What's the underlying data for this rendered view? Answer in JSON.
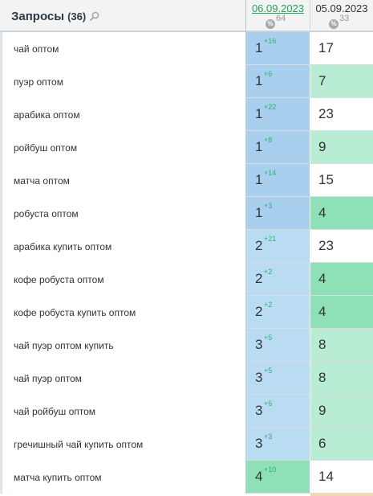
{
  "header": {
    "title": "Запросы",
    "count": "(36)",
    "search_icon": "search-icon",
    "dates": [
      {
        "label": "06.09.2023",
        "badge": "%",
        "percent": "64"
      },
      {
        "label": "05.09.2023",
        "badge": "%",
        "percent": "33"
      }
    ]
  },
  "colors": {
    "d1_top": "#a8d0ee",
    "d1_mid": "#b9dcf3",
    "d1_green": "#8ee0b6",
    "d2_green_strong": "#8ee0b6",
    "d2_green_light": "#b8ecd3",
    "d2_white": "#ffffff",
    "delta_green": "#2bb36a"
  },
  "rows": [
    {
      "query": "чай оптом",
      "d1": {
        "pos": "1",
        "delta": "+16",
        "color": "d1_top"
      },
      "d2": {
        "pos": "17",
        "color": "d2_white"
      }
    },
    {
      "query": "пуэр оптом",
      "d1": {
        "pos": "1",
        "delta": "+6",
        "color": "d1_top"
      },
      "d2": {
        "pos": "7",
        "color": "d2_green_light"
      }
    },
    {
      "query": "арабика оптом",
      "d1": {
        "pos": "1",
        "delta": "+22",
        "color": "d1_top"
      },
      "d2": {
        "pos": "23",
        "color": "d2_white"
      }
    },
    {
      "query": "ройбуш оптом",
      "d1": {
        "pos": "1",
        "delta": "+8",
        "color": "d1_top"
      },
      "d2": {
        "pos": "9",
        "color": "d2_green_light"
      }
    },
    {
      "query": "матча оптом",
      "d1": {
        "pos": "1",
        "delta": "+14",
        "color": "d1_top"
      },
      "d2": {
        "pos": "15",
        "color": "d2_white"
      }
    },
    {
      "query": "робуста оптом",
      "d1": {
        "pos": "1",
        "delta": "+3",
        "color": "d1_top"
      },
      "d2": {
        "pos": "4",
        "color": "d2_green_strong"
      }
    },
    {
      "query": "арабика купить оптом",
      "d1": {
        "pos": "2",
        "delta": "+21",
        "color": "d1_mid"
      },
      "d2": {
        "pos": "23",
        "color": "d2_white"
      }
    },
    {
      "query": "кофе робуста оптом",
      "d1": {
        "pos": "2",
        "delta": "+2",
        "color": "d1_mid"
      },
      "d2": {
        "pos": "4",
        "color": "d2_green_strong"
      }
    },
    {
      "query": "кофе робуста купить оптом",
      "d1": {
        "pos": "2",
        "delta": "+2",
        "color": "d1_mid"
      },
      "d2": {
        "pos": "4",
        "color": "d2_green_strong"
      }
    },
    {
      "query": "чай пуэр оптом купить",
      "d1": {
        "pos": "3",
        "delta": "+5",
        "color": "d1_mid"
      },
      "d2": {
        "pos": "8",
        "color": "d2_green_light"
      }
    },
    {
      "query": "чай пуэр оптом",
      "d1": {
        "pos": "3",
        "delta": "+5",
        "color": "d1_mid"
      },
      "d2": {
        "pos": "8",
        "color": "d2_green_light"
      }
    },
    {
      "query": "чай ройбуш оптом",
      "d1": {
        "pos": "3",
        "delta": "+6",
        "color": "d1_mid"
      },
      "d2": {
        "pos": "9",
        "color": "d2_green_light"
      }
    },
    {
      "query": "гречишный чай купить оптом",
      "d1": {
        "pos": "3",
        "delta": "+3",
        "color": "d1_mid"
      },
      "d2": {
        "pos": "6",
        "color": "d2_green_light"
      }
    },
    {
      "query": "матча купить оптом",
      "d1": {
        "pos": "4",
        "delta": "+10",
        "color": "d1_green"
      },
      "d2": {
        "pos": "14",
        "color": "d2_white"
      }
    }
  ]
}
